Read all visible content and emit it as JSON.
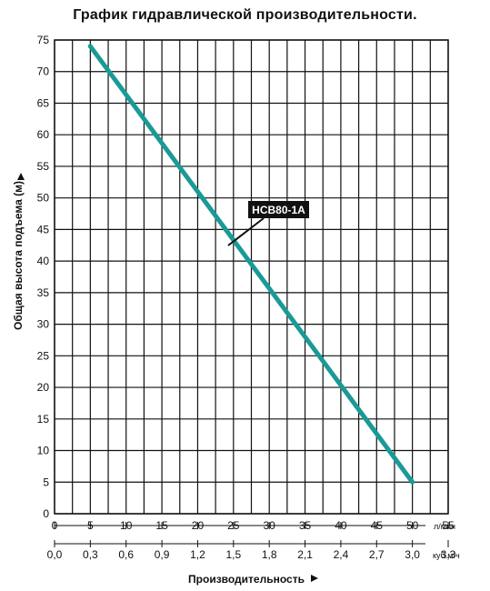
{
  "chart_data": {
    "type": "line",
    "title": "График гидравлической производительности.",
    "xlabel": "Производительность",
    "ylabel": "Общая высота подъема (м)",
    "x_unit": "л/мин",
    "x2_unit": "куб.м/ч",
    "xlim": [
      0,
      55
    ],
    "ylim": [
      0,
      75
    ],
    "x_ticks": [
      "0",
      "5",
      "10",
      "15",
      "20",
      "25",
      "30",
      "35",
      "40",
      "45",
      "50",
      "55"
    ],
    "x2_ticks": [
      "0,0",
      "0,3",
      "0,6",
      "0,9",
      "1,2",
      "1,5",
      "1,8",
      "2,1",
      "2,4",
      "2,7",
      "3,0",
      "3,3"
    ],
    "y_ticks": [
      "0",
      "5",
      "10",
      "15",
      "20",
      "25",
      "30",
      "35",
      "40",
      "45",
      "50",
      "55",
      "60",
      "65",
      "70",
      "75"
    ],
    "grid": true,
    "series": [
      {
        "name": "HCB80-1A",
        "color": "#1a9a96",
        "x": [
          5,
          50
        ],
        "y": [
          74,
          5
        ]
      }
    ]
  }
}
